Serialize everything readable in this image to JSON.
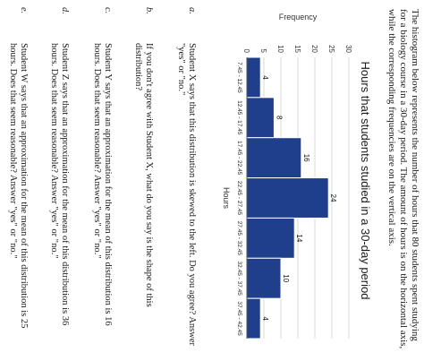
{
  "intro_text": "The histogram below represents the number of hours that 80 students spent studying for a biology course in a 30-day period. The amount of hours is on the horizontal axis, while the corresponding frequencies are on the vertical axis.",
  "chart_data": {
    "type": "bar",
    "title": "Hours that students studied in a 30-day period",
    "xlabel": "Hours",
    "ylabel": "Frequency",
    "categories": [
      "7.45 - 12.45",
      "12.45 - 17.45",
      "17.45 - 22.45",
      "22.45 - 27.45",
      "27.45 - 32.45",
      "32.45 - 37.45",
      "37.45 - 42.45"
    ],
    "values": [
      4,
      8,
      16,
      24,
      14,
      10,
      4
    ],
    "yticks": [
      0,
      5,
      10,
      15,
      20,
      25,
      30
    ],
    "ylim": [
      0,
      30
    ],
    "bar_color": "#1f3f8c",
    "grid": true
  },
  "questions": [
    {
      "letter": "a.",
      "text": "Student X says that this distribution is skewed to the left. Do you agree? Answer \"yes\" or \"no.\""
    },
    {
      "letter": "b.",
      "text": "If you don't agree with Student X, what do you say is the shape of this distribution?"
    },
    {
      "letter": "c.",
      "text": "Student Y says that an approximation for the mean of this distribution is 16 hours. Does that seem reasonable? Answer \"yes\" or \"no.\""
    },
    {
      "letter": "d.",
      "text": "Student Z says that an approximation for the mean of this distribution is 36 hours. Does that seem reasonable? Answer \"yes\" or \"no.\""
    },
    {
      "letter": "e.",
      "text": "Student W says that an approximation for the mean of this distribution is 25 hours. Does that seem reasonable? Answer \"yes\" or \"no.\""
    }
  ]
}
